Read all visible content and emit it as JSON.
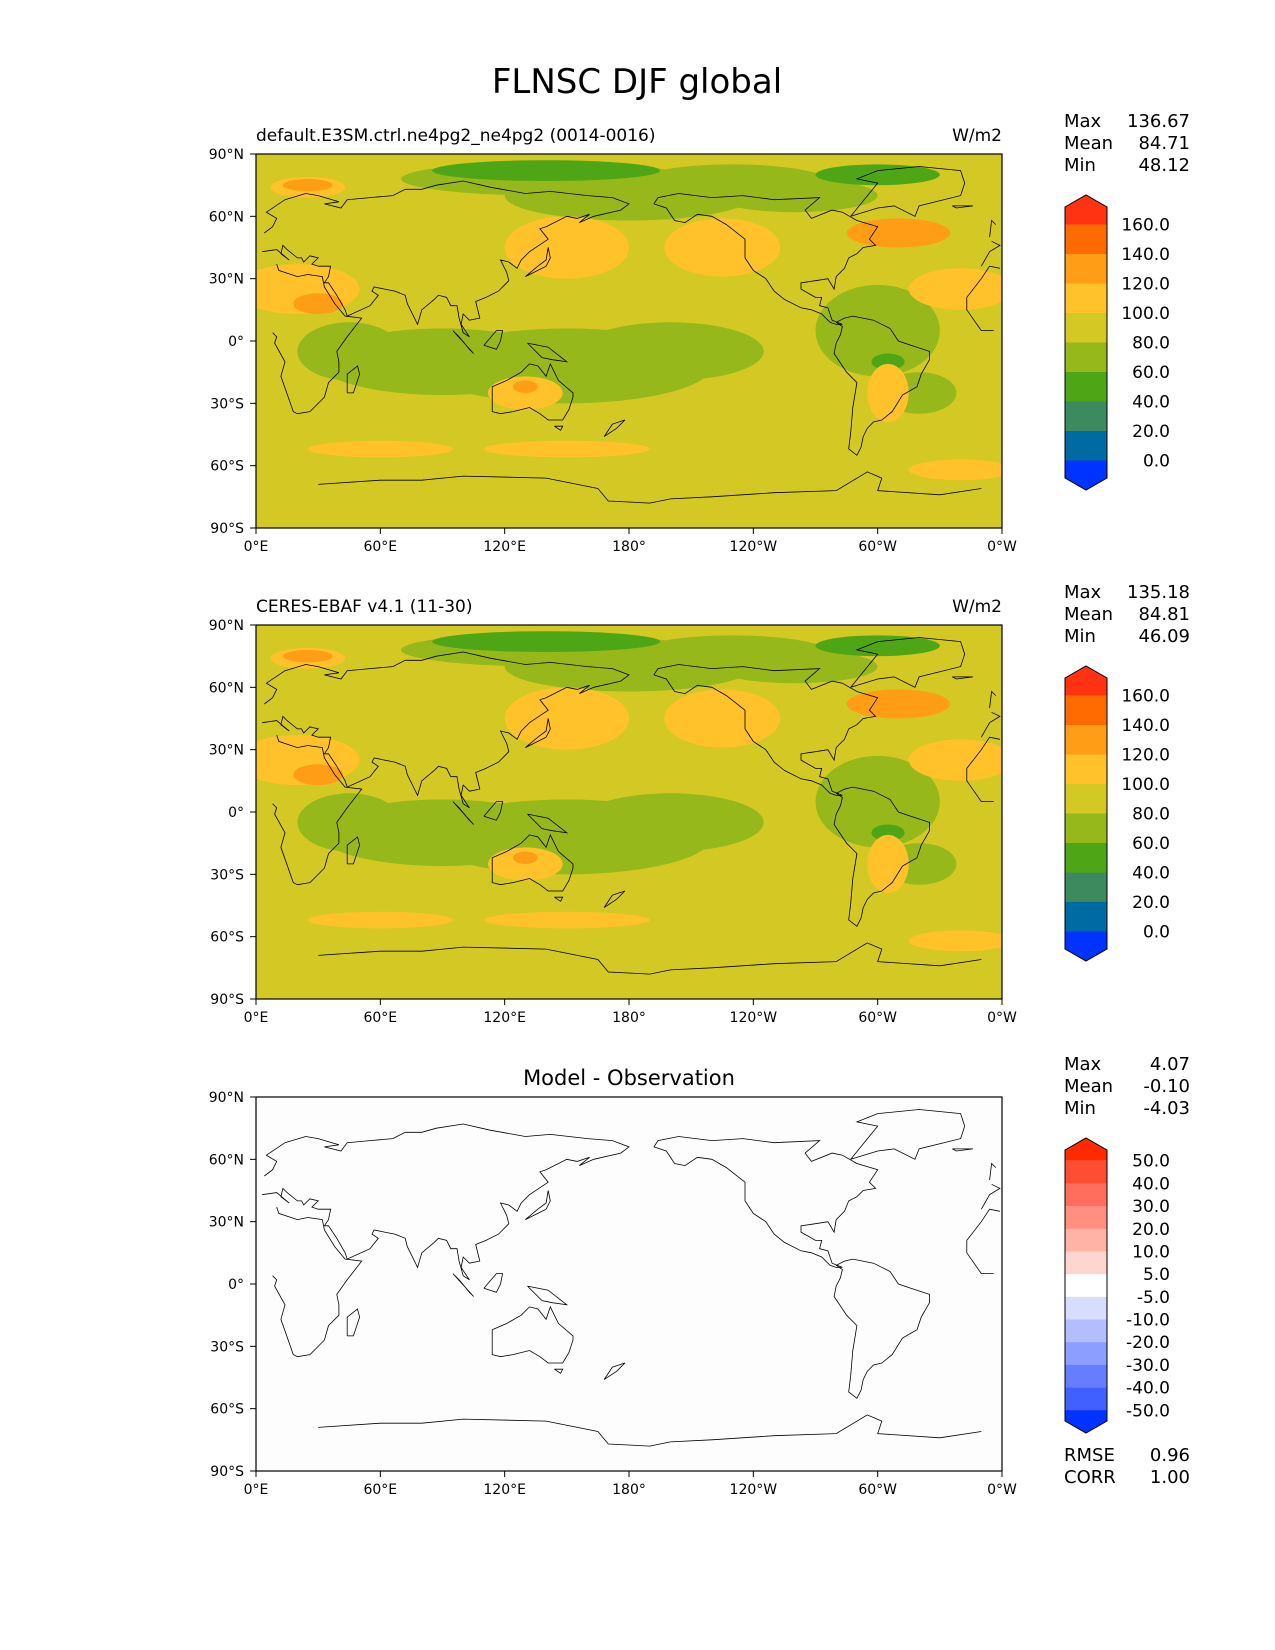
{
  "title": "FLNSC DJF global",
  "axes": {
    "lat_labels": [
      "90°N",
      "60°N",
      "30°N",
      "0°",
      "30°S",
      "60°S",
      "90°S"
    ],
    "lon_labels": [
      "0°E",
      "60°E",
      "120°E",
      "180°",
      "120°W",
      "60°W",
      "0°W"
    ]
  },
  "panels": [
    {
      "id": "model",
      "left_title": "default.E3SM.ctrl.ne4pg2_ne4pg2 (0014-0016)",
      "center_title": "",
      "units": "W/m2",
      "stats": [
        {
          "label": "Max",
          "value": "136.67"
        },
        {
          "label": "Mean",
          "value": "84.71"
        },
        {
          "label": "Min",
          "value": "48.12"
        }
      ],
      "colorbar": {
        "tick_labels": [
          "160.0",
          "140.0",
          "120.0",
          "100.0",
          "80.0",
          "60.0",
          "40.0",
          "20.0",
          "0.0"
        ],
        "colors_top_to_bottom": [
          "#ff3311",
          "#ff6b00",
          "#ff9e16",
          "#ffc22a",
          "#d4c825",
          "#96b81a",
          "#4ea616",
          "#3d8a5f",
          "#006aa2",
          "#0033ff"
        ]
      },
      "map_fill": "#d4c825"
    },
    {
      "id": "obs",
      "left_title": "CERES-EBAF v4.1 (11-30)",
      "center_title": "",
      "units": "W/m2",
      "stats": [
        {
          "label": "Max",
          "value": "135.18"
        },
        {
          "label": "Mean",
          "value": "84.81"
        },
        {
          "label": "Min",
          "value": "46.09"
        }
      ],
      "colorbar": {
        "tick_labels": [
          "160.0",
          "140.0",
          "120.0",
          "100.0",
          "80.0",
          "60.0",
          "40.0",
          "20.0",
          "0.0"
        ],
        "colors_top_to_bottom": [
          "#ff3311",
          "#ff6b00",
          "#ff9e16",
          "#ffc22a",
          "#d4c825",
          "#96b81a",
          "#4ea616",
          "#3d8a5f",
          "#006aa2",
          "#0033ff"
        ]
      },
      "map_fill": "#d4c825"
    },
    {
      "id": "diff",
      "left_title": "",
      "center_title": "Model - Observation",
      "units": "",
      "stats": [
        {
          "label": "Max",
          "value": "4.07"
        },
        {
          "label": "Mean",
          "value": "-0.10"
        },
        {
          "label": "Min",
          "value": "-4.03"
        }
      ],
      "colorbar": {
        "tick_labels": [
          "50.0",
          "40.0",
          "30.0",
          "20.0",
          "10.0",
          "5.0",
          "-5.0",
          "-10.0",
          "-20.0",
          "-30.0",
          "-40.0",
          "-50.0"
        ],
        "colors_top_to_bottom": [
          "#ff2a00",
          "#ff4d33",
          "#ff6e5c",
          "#ff9080",
          "#ffb2a6",
          "#ffd6cf",
          "#ffffff",
          "#d6ddff",
          "#b2beff",
          "#8c9eff",
          "#667dff",
          "#4060ff",
          "#0033ff"
        ]
      },
      "map_fill": "#fdfdfd",
      "extra_stats": [
        {
          "label": "RMSE",
          "value": "0.96"
        },
        {
          "label": "CORR",
          "value": "1.00"
        }
      ]
    }
  ]
}
